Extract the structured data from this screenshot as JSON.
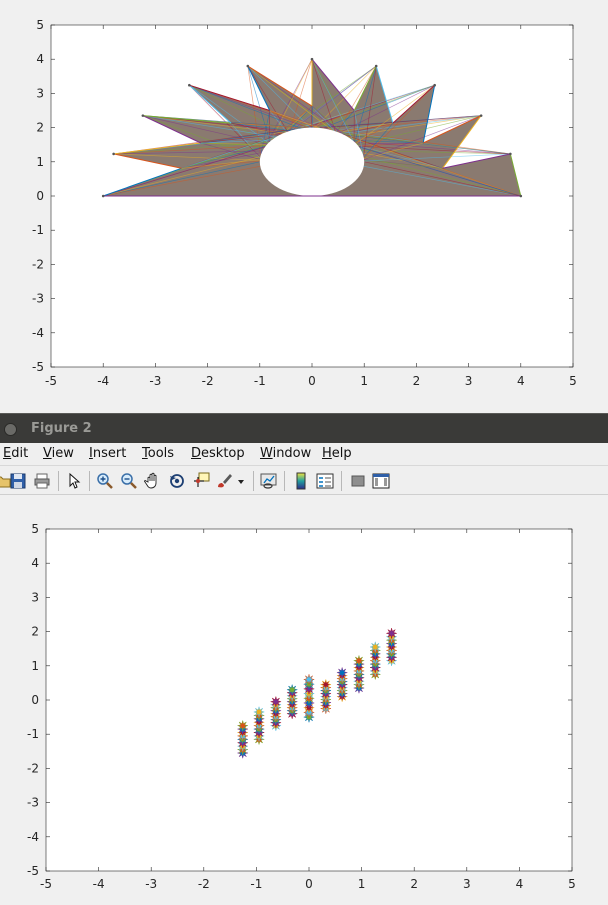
{
  "figure1": {
    "chart_data": {
      "type": "area",
      "description_shape": "star",
      "star_outer_points": [
        [
          -4,
          0
        ],
        [
          -3.8,
          1.23
        ],
        [
          -3.24,
          2.35
        ],
        [
          -2.35,
          3.24
        ],
        [
          -1.23,
          3.8
        ],
        [
          0,
          4
        ],
        [
          1.23,
          3.8
        ],
        [
          2.35,
          3.24
        ],
        [
          3.24,
          2.35
        ],
        [
          3.8,
          1.23
        ],
        [
          4,
          0
        ]
      ],
      "star_inner_points": [
        [
          -2.5,
          0.81
        ],
        [
          -2.13,
          1.55
        ],
        [
          -1.55,
          2.13
        ],
        [
          -0.81,
          2.5
        ],
        [
          0,
          2.63
        ],
        [
          0.81,
          2.5
        ],
        [
          1.55,
          2.13
        ],
        [
          2.13,
          1.55
        ],
        [
          2.5,
          0.81
        ]
      ],
      "hole": {
        "cx": 0,
        "cy": 1,
        "rx": 1,
        "ry": 1
      },
      "xlim": [
        -5,
        5
      ],
      "ylim": [
        -5,
        5
      ],
      "xticks": [
        "-5",
        "-4",
        "-3",
        "-2",
        "-1",
        "0",
        "1",
        "2",
        "3",
        "4",
        "5"
      ],
      "yticks": [
        "5",
        "4",
        "3",
        "2",
        "1",
        "0",
        "-1",
        "-2",
        "-3",
        "-4",
        "-5"
      ],
      "colors": [
        "#0072BD",
        "#D95319",
        "#EDB120",
        "#7E2F8E",
        "#77AC30",
        "#4DBEEE",
        "#A2142F"
      ]
    }
  },
  "figure2": {
    "window": {
      "title": "Figure 2"
    },
    "menu": [
      {
        "label": "Edit",
        "u": "E",
        "rest": "dit"
      },
      {
        "label": "View",
        "u": "V",
        "rest": "iew"
      },
      {
        "label": "Insert",
        "u": "I",
        "rest": "nsert"
      },
      {
        "label": "Tools",
        "u": "T",
        "rest": "ools"
      },
      {
        "label": "Desktop",
        "u": "D",
        "rest": "esktop"
      },
      {
        "label": "Window",
        "u": "W",
        "rest": "indow"
      },
      {
        "label": "Help",
        "u": "H",
        "rest": "elp"
      }
    ],
    "toolbar_icons": [
      "save-icon",
      "print-icon",
      "pointer-icon",
      "zoom-in-icon",
      "zoom-out-icon",
      "pan-icon",
      "rotate-icon",
      "data-cursor-icon",
      "brush-icon",
      "dropdown-arrow-icon",
      "link-icon",
      "colorbar-icon",
      "legend-icon",
      "hide-plot-tools-icon",
      "show-plot-tools-icon"
    ],
    "chart_data": {
      "type": "scatter",
      "marker": "star-cluster",
      "clusters": [
        {
          "x": -1.26,
          "y_center": -1.15,
          "spread": 0.4
        },
        {
          "x": -0.95,
          "y_center": -0.75,
          "spread": 0.4
        },
        {
          "x": -0.63,
          "y_center": -0.4,
          "spread": 0.35
        },
        {
          "x": -0.32,
          "y_center": -0.05,
          "spread": 0.35
        },
        {
          "x": 0,
          "y_center": 0.05,
          "spread": 0.55
        },
        {
          "x": 0.32,
          "y_center": 0.1,
          "spread": 0.35
        },
        {
          "x": 0.63,
          "y_center": 0.45,
          "spread": 0.35
        },
        {
          "x": 0.95,
          "y_center": 0.75,
          "spread": 0.4
        },
        {
          "x": 1.26,
          "y_center": 1.15,
          "spread": 0.4
        },
        {
          "x": 1.57,
          "y_center": 1.55,
          "spread": 0.4
        }
      ],
      "xlim": [
        -5,
        5
      ],
      "ylim": [
        -5,
        5
      ],
      "xticks": [
        "-5",
        "-4",
        "-3",
        "-2",
        "-1",
        "0",
        "1",
        "2",
        "3",
        "4",
        "5"
      ],
      "yticks": [
        "5",
        "4",
        "3",
        "2",
        "1",
        "0",
        "-1",
        "-2",
        "-3",
        "-4",
        "-5"
      ],
      "colors": [
        "#0072BD",
        "#D95319",
        "#EDB120",
        "#7E2F8E",
        "#77AC30",
        "#4DBEEE",
        "#A2142F"
      ]
    }
  }
}
